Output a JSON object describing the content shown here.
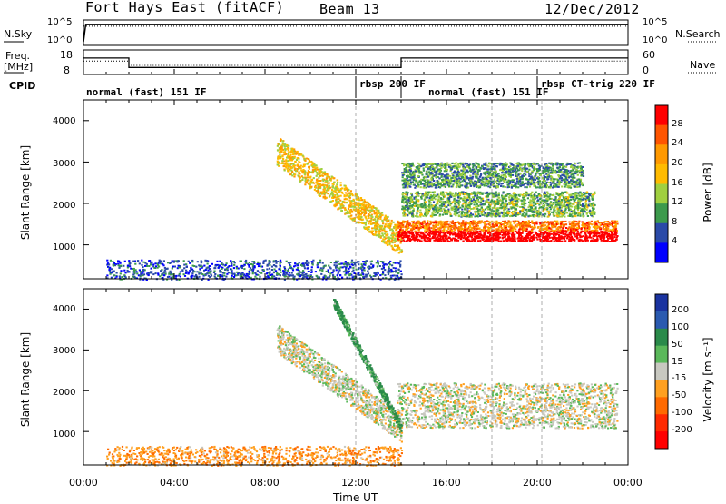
{
  "header": {
    "station": "Fort Hays East (fitACF)",
    "beam": "Beam 13",
    "date": "12/Dec/2012"
  },
  "panels": {
    "nsky_label": "N.Sky",
    "nsearch_label": "N.Search",
    "freq_label_line1": "Freq.",
    "freq_label_line2": "[MHz]",
    "nave_label": "Nave",
    "cpid_label": "CPID",
    "nsky_ticks": [
      "10^5",
      "10^0"
    ],
    "nsearch_ticks": [
      "10^5",
      "10^0"
    ],
    "freq_ticks": [
      "18",
      "8"
    ],
    "nave_ticks": [
      "60",
      "0"
    ],
    "cpid_modes": [
      {
        "label": "normal (fast) 151 IF",
        "start": 0
      },
      {
        "label": "rbsp 200 IF",
        "start": 12
      },
      {
        "label": "normal (fast) 151 IF",
        "start": 14
      },
      {
        "label": "rbsp CT-trig 220 IF",
        "start": 20
      }
    ]
  },
  "chart_data": [
    {
      "type": "line",
      "name": "sky-noise-panel",
      "x_unit": "hours UT",
      "series": [
        {
          "name": "N.Sky",
          "x": [
            0,
            0.1,
            24
          ],
          "y": [
            1,
            60000,
            60000
          ]
        },
        {
          "name": "N.Search",
          "x": [
            0,
            24
          ],
          "y": [
            60000,
            60000
          ]
        }
      ]
    },
    {
      "type": "line",
      "name": "frequency-nave-panel",
      "x_unit": "hours UT",
      "series": [
        {
          "name": "Freq.",
          "x": [
            0,
            2,
            2,
            14,
            14,
            24
          ],
          "y": [
            15,
            15,
            10.5,
            10.5,
            15,
            15
          ]
        },
        {
          "name": "Nave",
          "x": [
            0,
            2,
            2,
            14,
            14,
            24
          ],
          "y": [
            33,
            33,
            21,
            21,
            33,
            33
          ]
        }
      ]
    },
    {
      "type": "heatmap",
      "name": "power-panel",
      "ylabel": "Slant Range [km]",
      "colorbar_label": "Power [dB]",
      "colorbar_ticks": [
        "28",
        "24",
        "20",
        "16",
        "12",
        "8",
        "4"
      ],
      "colorbar_colors": [
        "#ff0000",
        "#ff5500",
        "#ff9900",
        "#ffbb00",
        "#a0d040",
        "#3c9a4c",
        "#2a4aa8",
        "#0000ff"
      ],
      "xlim": [
        0,
        24
      ],
      "ylim": [
        180,
        4500
      ],
      "y_ticks": [
        "1000",
        "2000",
        "3000",
        "4000"
      ],
      "features": [
        {
          "kind": "arc",
          "x_start": 8.5,
          "x_end": 14.0,
          "range_start": 3300,
          "range_end": 1100,
          "power": 18
        },
        {
          "kind": "band",
          "x_start": 13.8,
          "x_end": 23.5,
          "range_low": 1100,
          "range_high": 1600,
          "power": 24
        },
        {
          "kind": "band",
          "x_start": 14.0,
          "x_end": 22.5,
          "range_low": 1700,
          "range_high": 2300,
          "power": 12
        },
        {
          "kind": "band",
          "x_start": 14.0,
          "x_end": 22.0,
          "range_low": 2400,
          "range_high": 3000,
          "power": 10
        },
        {
          "kind": "ground_scatter",
          "x_start": 1,
          "x_end": 14,
          "range_low": 180,
          "range_high": 650,
          "power": 6
        }
      ]
    },
    {
      "type": "heatmap",
      "name": "velocity-panel",
      "xlabel": "Time UT",
      "ylabel": "Slant Range [km]",
      "colorbar_label": "Velocity [m s⁻¹]",
      "colorbar_ticks": [
        "200",
        "100",
        "50",
        "15",
        "-15",
        "-50",
        "-100",
        "-200"
      ],
      "colorbar_colors": [
        "#1a33a0",
        "#2a5ab0",
        "#2a8a4a",
        "#5ab85a",
        "#c8c8c0",
        "#ffa020",
        "#ff6a00",
        "#ff2a00",
        "#ff0000"
      ],
      "xlim": [
        0,
        24
      ],
      "ylim": [
        180,
        4500
      ],
      "x_ticks": [
        "00:00",
        "04:00",
        "08:00",
        "12:00",
        "16:00",
        "20:00",
        "00:00"
      ],
      "y_ticks": [
        "1000",
        "2000",
        "3000",
        "4000"
      ],
      "features": [
        {
          "kind": "arc",
          "x_start": 8.5,
          "x_end": 14.0,
          "range_start": 3300,
          "range_end": 1100,
          "velocity": 0
        },
        {
          "kind": "band",
          "x_start": 13.8,
          "x_end": 23.5,
          "range_low": 1100,
          "range_high": 2200,
          "velocity": 0
        },
        {
          "kind": "streak",
          "x_start": 11.0,
          "x_end": 14.0,
          "range_start": 4200,
          "range_end": 1100,
          "velocity": 40
        },
        {
          "kind": "ground_scatter",
          "x_start": 1,
          "x_end": 14,
          "range_low": 180,
          "range_high": 650,
          "velocity": -40
        }
      ]
    }
  ]
}
